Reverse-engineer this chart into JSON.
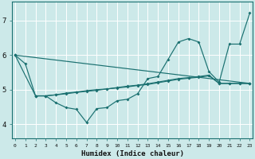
{
  "xlabel": "Humidex (Indice chaleur)",
  "xlim": [
    -0.3,
    23.3
  ],
  "ylim": [
    3.6,
    7.55
  ],
  "xticks": [
    0,
    1,
    2,
    3,
    4,
    5,
    6,
    7,
    8,
    9,
    10,
    11,
    12,
    13,
    14,
    15,
    16,
    17,
    18,
    19,
    20,
    21,
    22,
    23
  ],
  "yticks": [
    4,
    5,
    6,
    7
  ],
  "bg_color": "#cce9e9",
  "line_color": "#1a7070",
  "grid_color": "#ffffff",
  "series": [
    {
      "x": [
        0,
        1,
        2,
        3,
        4,
        5,
        6,
        7,
        8,
        9,
        10,
        11,
        12,
        13,
        14,
        15,
        16,
        17,
        18,
        19,
        20,
        21,
        22,
        23
      ],
      "y": [
        6.0,
        5.75,
        4.82,
        4.82,
        4.62,
        4.48,
        4.43,
        4.05,
        4.45,
        4.48,
        4.68,
        4.72,
        4.88,
        5.32,
        5.38,
        5.88,
        6.38,
        6.48,
        6.38,
        5.52,
        5.22,
        6.32,
        6.32,
        7.22
      ]
    },
    {
      "x": [
        0,
        23
      ],
      "y": [
        6.0,
        5.18
      ]
    },
    {
      "x": [
        2,
        3,
        4,
        5,
        6,
        7,
        8,
        9,
        10,
        11,
        12,
        13,
        14,
        15,
        16,
        17,
        18,
        19,
        20,
        21,
        22,
        23
      ],
      "y": [
        4.82,
        4.82,
        4.85,
        4.88,
        4.92,
        4.95,
        4.98,
        5.02,
        5.05,
        5.08,
        5.12,
        5.15,
        5.2,
        5.25,
        5.3,
        5.33,
        5.36,
        5.4,
        5.18,
        5.18,
        5.18,
        5.18
      ]
    },
    {
      "x": [
        0,
        2,
        3,
        4,
        5,
        6,
        7,
        8,
        9,
        10,
        11,
        12,
        13,
        14,
        15,
        16,
        17,
        18,
        19,
        20,
        21,
        22,
        23
      ],
      "y": [
        6.0,
        4.82,
        4.82,
        4.85,
        4.9,
        4.93,
        4.97,
        5.0,
        5.02,
        5.06,
        5.1,
        5.13,
        5.17,
        5.22,
        5.27,
        5.32,
        5.35,
        5.38,
        5.42,
        5.18,
        5.18,
        5.18,
        5.18
      ]
    }
  ]
}
